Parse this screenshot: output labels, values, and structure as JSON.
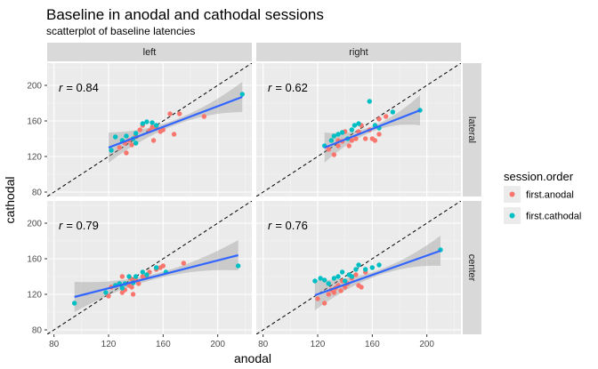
{
  "chart_data": {
    "type": "scatter",
    "title": "Baseline in anodal and cathodal sessions",
    "subtitle": "scatterplot of baseline latencies",
    "xlabel": "anodal",
    "ylabel": "cathodal",
    "xlim": [
      75,
      225
    ],
    "ylim": [
      75,
      225
    ],
    "x_ticks": [
      "80",
      "120",
      "160",
      "200"
    ],
    "y_ticks": [
      "80",
      "120",
      "160",
      "200"
    ],
    "grid": true,
    "identity_line": "dashed",
    "col_facets": [
      "left",
      "right"
    ],
    "row_facets": [
      "lateral",
      "center"
    ],
    "legend": {
      "title": "session.order",
      "position": "right",
      "entries": [
        {
          "label": "first.anodal",
          "color": "#F8766D"
        },
        {
          "label": "first.cathodal",
          "color": "#00BFC4"
        }
      ]
    },
    "fit_line_color": "#3366FF",
    "panels": [
      {
        "col": "left",
        "row": "lateral",
        "r_prefix": "r",
        "r_value": "= 0.84",
        "fit": {
          "x": [
            120,
            218
          ],
          "y": [
            130,
            187
          ]
        },
        "series": [
          {
            "name": "first.anodal",
            "points": [
              [
                128,
                130
              ],
              [
                132,
                135
              ],
              [
                135,
                138
              ],
              [
                133,
                124
              ],
              [
                140,
                143
              ],
              [
                143,
                150
              ],
              [
                150,
                149
              ],
              [
                152,
                153
              ],
              [
                155,
                152
              ],
              [
                153,
                138
              ],
              [
                158,
                148
              ],
              [
                165,
                168
              ],
              [
                168,
                145
              ],
              [
                172,
                168
              ],
              [
                190,
                165
              ],
              [
                145,
                155
              ],
              [
                160,
                150
              ],
              [
                137,
                133
              ]
            ]
          },
          {
            "name": "first.cathodal",
            "points": [
              [
                122,
                127
              ],
              [
                125,
                142
              ],
              [
                130,
                138
              ],
              [
                133,
                143
              ],
              [
                140,
                146
              ],
              [
                145,
                157
              ],
              [
                148,
                159
              ],
              [
                152,
                158
              ],
              [
                155,
                155
              ],
              [
                218,
                190
              ],
              [
                140,
                135
              ],
              [
                138,
                140
              ]
            ]
          }
        ]
      },
      {
        "col": "right",
        "row": "lateral",
        "r_prefix": "r",
        "r_value": "= 0.62",
        "fit": {
          "x": [
            125,
            195
          ],
          "y": [
            130,
            172
          ]
        },
        "series": [
          {
            "name": "first.anodal",
            "points": [
              [
                128,
                128
              ],
              [
                132,
                122
              ],
              [
                135,
                132
              ],
              [
                140,
                148
              ],
              [
                143,
                132
              ],
              [
                145,
                138
              ],
              [
                148,
                140
              ],
              [
                150,
                148
              ],
              [
                152,
                155
              ],
              [
                155,
                140
              ],
              [
                158,
                150
              ],
              [
                160,
                140
              ],
              [
                165,
                145
              ],
              [
                162,
                138
              ],
              [
                165,
                162
              ],
              [
                170,
                165
              ],
              [
                138,
                137
              ],
              [
                135,
                138
              ]
            ]
          },
          {
            "name": "first.cathodal",
            "points": [
              [
                125,
                132
              ],
              [
                130,
                138
              ],
              [
                132,
                143
              ],
              [
                135,
                145
              ],
              [
                138,
                147
              ],
              [
                145,
                150
              ],
              [
                147,
                155
              ],
              [
                150,
                157
              ],
              [
                158,
                182
              ],
              [
                162,
                155
              ],
              [
                165,
                152
              ],
              [
                195,
                172
              ],
              [
                175,
                170
              ],
              [
                142,
                140
              ]
            ]
          }
        ]
      },
      {
        "col": "left",
        "row": "center",
        "r_prefix": "r",
        "r_value": "= 0.79",
        "fit": {
          "x": [
            95,
            215
          ],
          "y": [
            117,
            164
          ]
        },
        "series": [
          {
            "name": "first.anodal",
            "points": [
              [
                120,
                118
              ],
              [
                122,
                128
              ],
              [
                125,
                130
              ],
              [
                128,
                132
              ],
              [
                130,
                140
              ],
              [
                132,
                125
              ],
              [
                135,
                130
              ],
              [
                137,
                128
              ],
              [
                138,
                135
              ],
              [
                140,
                136
              ],
              [
                142,
                132
              ],
              [
                145,
                140
              ],
              [
                148,
                140
              ],
              [
                150,
                145
              ],
              [
                155,
                148
              ],
              [
                158,
                150
              ],
              [
                160,
                152
              ],
              [
                175,
                155
              ],
              [
                130,
                122
              ],
              [
                136,
                138
              ],
              [
                138,
                120
              ]
            ]
          },
          {
            "name": "first.cathodal",
            "points": [
              [
                95,
                110
              ],
              [
                118,
                122
              ],
              [
                125,
                130
              ],
              [
                128,
                132
              ],
              [
                132,
                132
              ],
              [
                135,
                140
              ],
              [
                140,
                140
              ],
              [
                145,
                145
              ],
              [
                148,
                142
              ],
              [
                155,
                150
              ],
              [
                162,
                145
              ],
              [
                215,
                152
              ],
              [
                130,
                127
              ],
              [
                138,
                133
              ]
            ]
          }
        ]
      },
      {
        "col": "right",
        "row": "center",
        "r_prefix": "r",
        "r_value": "= 0.76",
        "fit": {
          "x": [
            118,
            210
          ],
          "y": [
            119,
            169
          ]
        },
        "series": [
          {
            "name": "first.anodal",
            "points": [
              [
                120,
                115
              ],
              [
                125,
                110
              ],
              [
                128,
                120
              ],
              [
                130,
                125
              ],
              [
                132,
                122
              ],
              [
                135,
                130
              ],
              [
                138,
                135
              ],
              [
                140,
                128
              ],
              [
                142,
                132
              ],
              [
                145,
                138
              ],
              [
                148,
                142
              ],
              [
                150,
                130
              ],
              [
                152,
                128
              ],
              [
                155,
                145
              ],
              [
                133,
                127
              ],
              [
                137,
                124
              ]
            ]
          },
          {
            "name": "first.cathodal",
            "points": [
              [
                118,
                135
              ],
              [
                122,
                138
              ],
              [
                125,
                136
              ],
              [
                128,
                132
              ],
              [
                132,
                138
              ],
              [
                135,
                140
              ],
              [
                138,
                145
              ],
              [
                140,
                135
              ],
              [
                145,
                140
              ],
              [
                148,
                148
              ],
              [
                150,
                153
              ],
              [
                155,
                148
              ],
              [
                160,
                150
              ],
              [
                165,
                153
              ],
              [
                210,
                170
              ],
              [
                143,
                142
              ]
            ]
          }
        ]
      }
    ]
  }
}
